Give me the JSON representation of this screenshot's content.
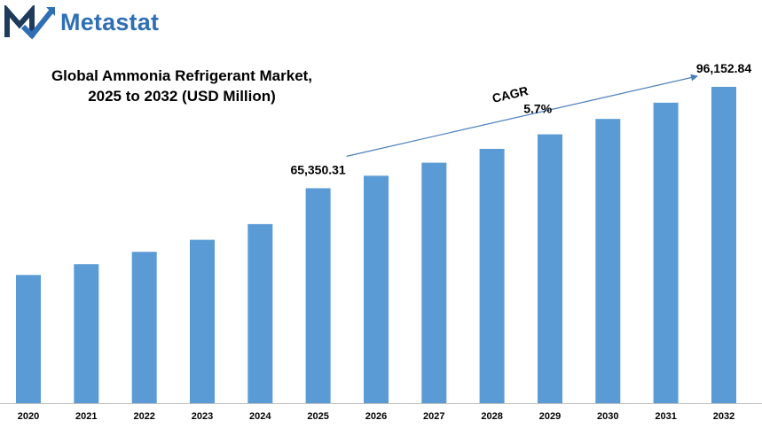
{
  "brand": {
    "name": "Metastat",
    "color": "#2f6fb5",
    "mark_color": "#1f3b5c"
  },
  "chart_data": {
    "type": "bar",
    "title_lines": [
      "Global Ammonia Refrigerant Market,",
      "2025 to 2032 (USD Million)"
    ],
    "categories": [
      "2020",
      "2021",
      "2022",
      "2023",
      "2024",
      "2025",
      "2026",
      "2027",
      "2028",
      "2029",
      "2030",
      "2031",
      "2032"
    ],
    "values": [
      38960,
      42240,
      46010,
      49660,
      54420,
      65350.31,
      69130,
      73090,
      77290,
      81710,
      86400,
      91340,
      96152.84
    ],
    "data_labels": [
      {
        "category": "2025",
        "text": "65,350.31"
      },
      {
        "category": "2032",
        "text": "96,152.84"
      }
    ],
    "annotation": {
      "lines": [
        "CAGR",
        "5.7%"
      ],
      "from": "2025",
      "to": "2032"
    },
    "bar_color": "#5b9bd5",
    "ylim": [
      0,
      101000
    ],
    "grid": false,
    "legend": "none"
  }
}
